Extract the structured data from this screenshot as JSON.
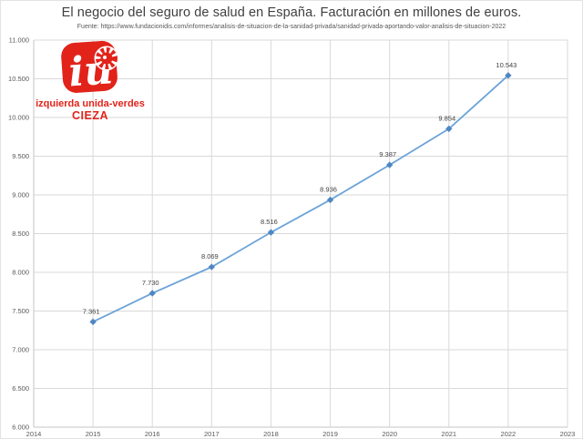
{
  "header": {
    "title": "El negocio del seguro de salud en España. Facturación en millones de euros.",
    "source": "Fuente: https://www.fundacionidis.com/informes/analisis-de-situacion-de-la-sanidad-privada/sanidad-privada-aportando-valor-analisis-de-situacion-2022"
  },
  "logo": {
    "monogram": "iu",
    "line1": "izquierda unida-verdes",
    "line2": "CIEZA",
    "brand_color": "#e2231a"
  },
  "chart_data": {
    "type": "line",
    "title": "El negocio del seguro de salud en España. Facturación en millones de euros.",
    "xlabel": "",
    "ylabel": "",
    "x": [
      2015,
      2016,
      2017,
      2018,
      2019,
      2020,
      2021,
      2022
    ],
    "values": [
      7361,
      7730,
      8069,
      8516,
      8936,
      9387,
      9854,
      10543
    ],
    "point_labels": [
      "7.361",
      "7.730",
      "8.069",
      "8.516",
      "8.936",
      "9.387",
      "9.854",
      "10.543"
    ],
    "xlim": [
      2014,
      2023
    ],
    "ylim": [
      6000,
      11000
    ],
    "x_ticks": [
      "2014",
      "2015",
      "2016",
      "2017",
      "2018",
      "2019",
      "2020",
      "2021",
      "2022",
      "2023"
    ],
    "y_ticks": [
      "6.000",
      "6.500",
      "7.000",
      "7.500",
      "8.000",
      "8.500",
      "9.000",
      "9.500",
      "10.000",
      "10.500",
      "11.000"
    ],
    "grid": true,
    "legend": "none",
    "colors": {
      "line": "#6ba3d8",
      "marker": "#4e87c2",
      "gridline": "#d9d9d9",
      "axis": "#c6c6c6",
      "tick_label": "#595959",
      "data_label": "#404040"
    }
  }
}
